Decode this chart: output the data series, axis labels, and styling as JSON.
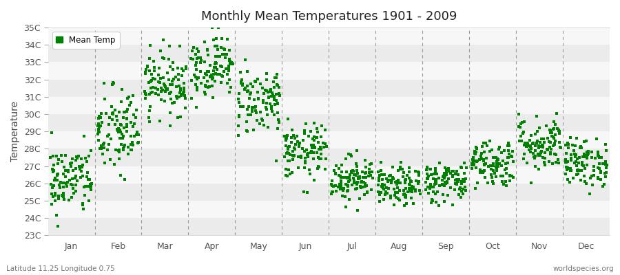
{
  "title": "Monthly Mean Temperatures 1901 - 2009",
  "ylabel": "Temperature",
  "subtitle_left": "Latitude 11.25 Longitude 0.75",
  "subtitle_right": "worldspecies.org",
  "legend_label": "Mean Temp",
  "marker_color": "#008000",
  "background_color": "#FFFFFF",
  "band_color_odd": "#EBEBEB",
  "band_color_even": "#F7F7F7",
  "ylim": [
    23,
    35
  ],
  "yticks": [
    23,
    24,
    25,
    26,
    27,
    28,
    29,
    30,
    31,
    32,
    33,
    34,
    35
  ],
  "ytick_labels": [
    "23C",
    "24C",
    "25C",
    "26C",
    "27C",
    "28C",
    "29C",
    "30C",
    "31C",
    "32C",
    "33C",
    "34C",
    "35C"
  ],
  "months": [
    "Jan",
    "Feb",
    "Mar",
    "Apr",
    "May",
    "Jun",
    "Jul",
    "Aug",
    "Sep",
    "Oct",
    "Nov",
    "Dec"
  ],
  "month_means": [
    26.2,
    29.0,
    31.8,
    32.8,
    30.8,
    27.8,
    26.3,
    25.8,
    26.1,
    27.2,
    28.3,
    27.2
  ],
  "month_stds": [
    1.0,
    1.3,
    0.9,
    0.9,
    1.0,
    0.8,
    0.65,
    0.55,
    0.6,
    0.7,
    0.8,
    0.7
  ],
  "n_years": 109,
  "seed": 42,
  "marker_size": 5,
  "figsize": [
    9.0,
    4.0
  ],
  "dpi": 100
}
